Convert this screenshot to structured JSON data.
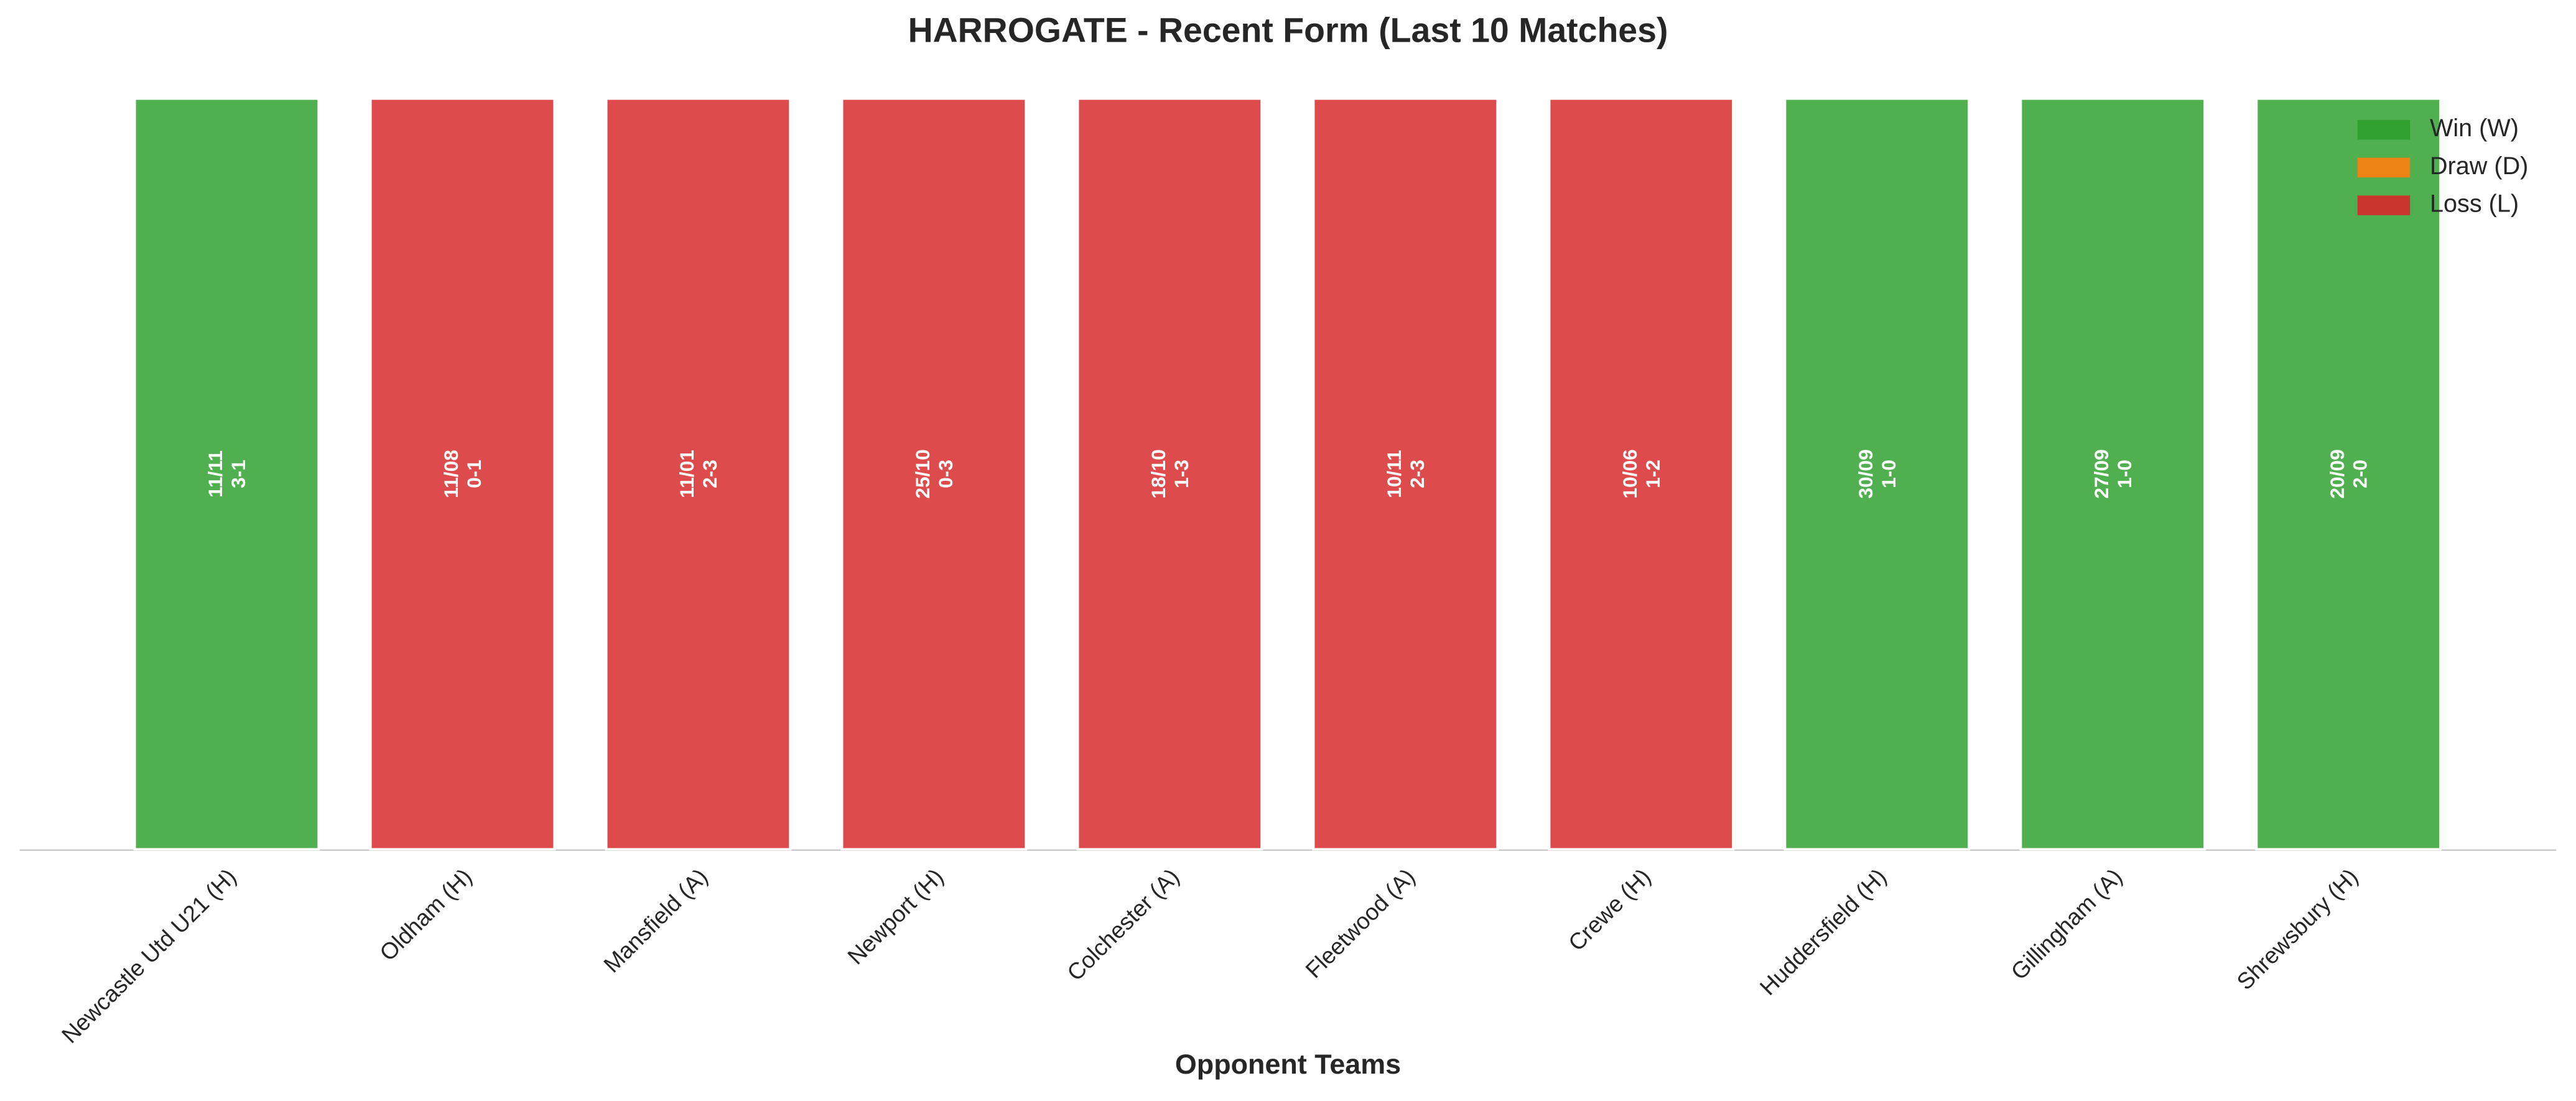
{
  "chart_data": {
    "type": "bar",
    "title": "HARROGATE - Recent Form (Last 10 Matches)",
    "x_label": "Opponent Teams",
    "categories": [
      "Newcastle Utd U21 (H)",
      "Oldham (H)",
      "Mansfield (A)",
      "Newport (H)",
      "Colchester (A)",
      "Fleetwood (A)",
      "Crewe (H)",
      "Huddersfield (H)",
      "Gillingham (A)",
      "Shrewsbury (H)"
    ],
    "values": [
      1,
      1,
      1,
      1,
      1,
      1,
      1,
      1,
      1,
      1
    ],
    "colors": [
      "#2ca02c",
      "#d62728",
      "#d62728",
      "#d62728",
      "#d62728",
      "#d62728",
      "#d62728",
      "#2ca02c",
      "#2ca02c",
      "#2ca02c"
    ],
    "dates": [
      "11/11",
      "11/08",
      "11/01",
      "25/10",
      "18/10",
      "10/11",
      "10/06",
      "30/09",
      "27/09",
      "20/09"
    ],
    "scores": [
      "3-1",
      "0-1",
      "2-3",
      "0-3",
      "1-3",
      "2-3",
      "1-2",
      "1-0",
      "1-0",
      "2-0"
    ],
    "ylim": [
      0,
      1
    ],
    "legend": [
      {
        "name": "Win (W)",
        "color": "#2ca02c"
      },
      {
        "name": "Draw (D)",
        "color": "#ff7f0e"
      },
      {
        "name": "Loss (L)",
        "color": "#d62728"
      }
    ],
    "legend_position": "upper right"
  }
}
